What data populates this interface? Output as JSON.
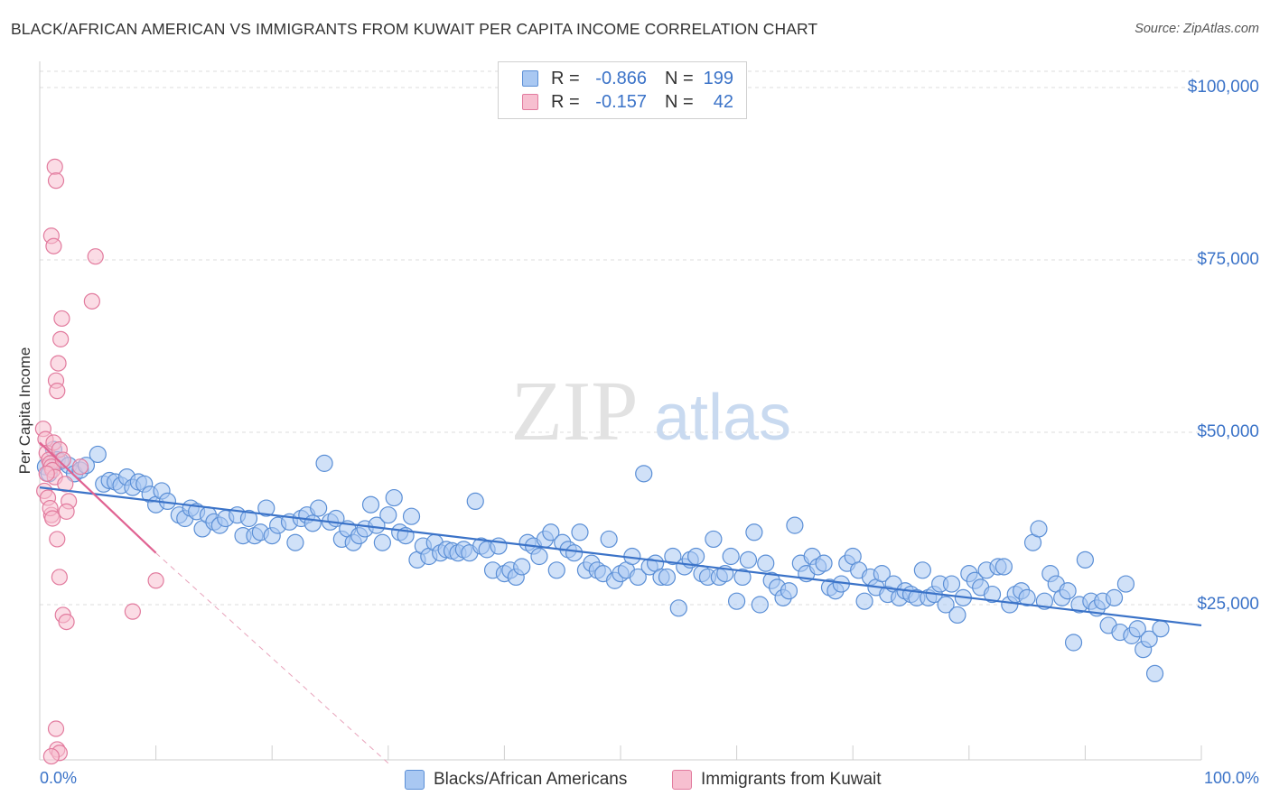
{
  "header": {
    "title": "BLACK/AFRICAN AMERICAN VS IMMIGRANTS FROM KUWAIT PER CAPITA INCOME CORRELATION CHART",
    "source": "Source: ZipAtlas.com"
  },
  "watermark": {
    "zip": "ZIP",
    "atlas": "atlas"
  },
  "legend": {
    "rows": [
      {
        "r_label": "R =",
        "r_value": "-0.866",
        "n_label": "N =",
        "n_value": "199",
        "color": "#a9c8f2",
        "border": "#5b8fd6"
      },
      {
        "r_label": "R =",
        "r_value": "-0.157",
        "n_label": "N =",
        "n_value": "42",
        "color": "#f7bfd0",
        "border": "#e27b9e"
      }
    ]
  },
  "bottom_legend": {
    "series1": "Blacks/African Americans",
    "series2": "Immigrants from Kuwait"
  },
  "chart_data": {
    "type": "scatter",
    "ylabel": "Per Capita Income",
    "x_ticks": [
      "0.0%",
      "100.0%"
    ],
    "y_ticks": [
      "$100,000",
      "$75,000",
      "$50,000",
      "$25,000"
    ],
    "xlim": [
      0,
      100
    ],
    "ylim": [
      0,
      102000
    ],
    "colors": {
      "blue": "#3b73c8",
      "blue_fill": "#a9c8f2",
      "pink": "#e06392",
      "pink_fill": "#f7bfd0"
    },
    "series": [
      {
        "name": "Blacks/African Americans",
        "trend": {
          "x": [
            0,
            100
          ],
          "y": [
            42000,
            22000
          ]
        },
        "points": [
          [
            0.5,
            45000
          ],
          [
            0.8,
            44000
          ],
          [
            1.2,
            47500
          ],
          [
            1.5,
            46000
          ],
          [
            1.8,
            45800
          ],
          [
            2.5,
            45200
          ],
          [
            3.0,
            44000
          ],
          [
            3.5,
            44500
          ],
          [
            4.0,
            45200
          ],
          [
            5.0,
            46800
          ],
          [
            5.5,
            42500
          ],
          [
            6.0,
            43000
          ],
          [
            6.5,
            42800
          ],
          [
            7.0,
            42300
          ],
          [
            7.5,
            43500
          ],
          [
            8.0,
            42000
          ],
          [
            8.5,
            42800
          ],
          [
            9.0,
            42500
          ],
          [
            9.5,
            41000
          ],
          [
            10.0,
            39500
          ],
          [
            10.5,
            41500
          ],
          [
            11.0,
            40000
          ],
          [
            12.0,
            38000
          ],
          [
            12.5,
            37500
          ],
          [
            13.0,
            39000
          ],
          [
            13.5,
            38500
          ],
          [
            14.0,
            36000
          ],
          [
            14.5,
            38000
          ],
          [
            15.0,
            37000
          ],
          [
            15.5,
            36500
          ],
          [
            16.0,
            37500
          ],
          [
            17.0,
            38000
          ],
          [
            17.5,
            35000
          ],
          [
            18.0,
            37500
          ],
          [
            18.5,
            35000
          ],
          [
            19.0,
            35500
          ],
          [
            19.5,
            39000
          ],
          [
            20.0,
            35000
          ],
          [
            20.5,
            36500
          ],
          [
            21.5,
            37000
          ],
          [
            22.0,
            34000
          ],
          [
            22.5,
            37500
          ],
          [
            23.0,
            38000
          ],
          [
            23.5,
            36800
          ],
          [
            24.0,
            39000
          ],
          [
            24.5,
            45500
          ],
          [
            25.0,
            37000
          ],
          [
            25.5,
            37500
          ],
          [
            26.0,
            34500
          ],
          [
            26.5,
            36000
          ],
          [
            27.0,
            34000
          ],
          [
            27.5,
            35000
          ],
          [
            28.0,
            36000
          ],
          [
            28.5,
            39500
          ],
          [
            29.0,
            36500
          ],
          [
            29.5,
            34000
          ],
          [
            30.0,
            38000
          ],
          [
            30.5,
            40500
          ],
          [
            31.0,
            35500
          ],
          [
            31.5,
            35000
          ],
          [
            32.0,
            37800
          ],
          [
            32.5,
            31500
          ],
          [
            33.0,
            33500
          ],
          [
            33.5,
            32000
          ],
          [
            34.0,
            34000
          ],
          [
            34.5,
            32500
          ],
          [
            35.0,
            33000
          ],
          [
            35.5,
            32800
          ],
          [
            36.0,
            32500
          ],
          [
            36.5,
            33000
          ],
          [
            37.0,
            32500
          ],
          [
            37.5,
            40000
          ],
          [
            38.0,
            33500
          ],
          [
            38.5,
            33000
          ],
          [
            39.0,
            30000
          ],
          [
            39.5,
            33500
          ],
          [
            40.0,
            29500
          ],
          [
            40.5,
            30000
          ],
          [
            41.0,
            29000
          ],
          [
            41.5,
            30500
          ],
          [
            42.0,
            34000
          ],
          [
            42.5,
            33500
          ],
          [
            43.0,
            32000
          ],
          [
            43.5,
            34500
          ],
          [
            44.0,
            35500
          ],
          [
            44.5,
            30000
          ],
          [
            45.0,
            34000
          ],
          [
            45.5,
            33000
          ],
          [
            46.0,
            32500
          ],
          [
            46.5,
            35500
          ],
          [
            47.0,
            30000
          ],
          [
            47.5,
            31000
          ],
          [
            48.0,
            30000
          ],
          [
            48.5,
            29500
          ],
          [
            49.0,
            34500
          ],
          [
            49.5,
            28500
          ],
          [
            50.0,
            29500
          ],
          [
            50.5,
            30000
          ],
          [
            51.0,
            32000
          ],
          [
            51.5,
            29000
          ],
          [
            52.0,
            44000
          ],
          [
            52.5,
            30500
          ],
          [
            53.0,
            31000
          ],
          [
            53.5,
            29000
          ],
          [
            54.0,
            29000
          ],
          [
            54.5,
            32000
          ],
          [
            55.0,
            24500
          ],
          [
            55.5,
            30500
          ],
          [
            56.0,
            31500
          ],
          [
            56.5,
            32000
          ],
          [
            57.0,
            29500
          ],
          [
            57.5,
            29000
          ],
          [
            58.0,
            34500
          ],
          [
            58.5,
            29000
          ],
          [
            59.0,
            29500
          ],
          [
            59.5,
            32000
          ],
          [
            60.0,
            25500
          ],
          [
            60.5,
            29000
          ],
          [
            61.0,
            31500
          ],
          [
            61.5,
            35500
          ],
          [
            62.0,
            25000
          ],
          [
            62.5,
            31000
          ],
          [
            63.0,
            28500
          ],
          [
            63.5,
            27500
          ],
          [
            64.0,
            26000
          ],
          [
            64.5,
            27000
          ],
          [
            65.0,
            36500
          ],
          [
            65.5,
            31000
          ],
          [
            66.0,
            29500
          ],
          [
            66.5,
            32000
          ],
          [
            67.0,
            30500
          ],
          [
            67.5,
            31000
          ],
          [
            68.0,
            27500
          ],
          [
            68.5,
            27000
          ],
          [
            69.0,
            28000
          ],
          [
            69.5,
            31000
          ],
          [
            70.0,
            32000
          ],
          [
            70.5,
            30000
          ],
          [
            71.0,
            25500
          ],
          [
            71.5,
            29000
          ],
          [
            72.0,
            27500
          ],
          [
            72.5,
            29500
          ],
          [
            73.0,
            26500
          ],
          [
            73.5,
            28000
          ],
          [
            74.0,
            26000
          ],
          [
            74.5,
            27000
          ],
          [
            75.0,
            26500
          ],
          [
            75.5,
            26000
          ],
          [
            76.0,
            30000
          ],
          [
            76.5,
            26000
          ],
          [
            77.0,
            26500
          ],
          [
            77.5,
            28000
          ],
          [
            78.0,
            25000
          ],
          [
            78.5,
            28000
          ],
          [
            79.0,
            23500
          ],
          [
            79.5,
            26000
          ],
          [
            80.0,
            29500
          ],
          [
            80.5,
            28500
          ],
          [
            81.0,
            27500
          ],
          [
            81.5,
            30000
          ],
          [
            82.0,
            26500
          ],
          [
            82.5,
            30500
          ],
          [
            83.0,
            30500
          ],
          [
            83.5,
            25000
          ],
          [
            84.0,
            26500
          ],
          [
            84.5,
            27000
          ],
          [
            85.0,
            26000
          ],
          [
            85.5,
            34000
          ],
          [
            86.0,
            36000
          ],
          [
            86.5,
            25500
          ],
          [
            87.0,
            29500
          ],
          [
            87.5,
            28000
          ],
          [
            88.0,
            26000
          ],
          [
            88.5,
            27000
          ],
          [
            89.0,
            19500
          ],
          [
            89.5,
            25000
          ],
          [
            90.0,
            31500
          ],
          [
            90.5,
            25500
          ],
          [
            91.0,
            24500
          ],
          [
            91.5,
            25500
          ],
          [
            92.0,
            22000
          ],
          [
            92.5,
            26000
          ],
          [
            93.0,
            21000
          ],
          [
            93.5,
            28000
          ],
          [
            94.0,
            20500
          ],
          [
            94.5,
            21500
          ],
          [
            95.0,
            18500
          ],
          [
            95.5,
            20000
          ],
          [
            96.0,
            15000
          ],
          [
            96.5,
            21500
          ]
        ]
      },
      {
        "name": "Immigrants from Kuwait",
        "trend": {
          "x": [
            0,
            10
          ],
          "y": [
            48500,
            32500
          ],
          "dashed_to": [
            30,
            2000
          ]
        },
        "points": [
          [
            0.3,
            50500
          ],
          [
            0.5,
            49000
          ],
          [
            0.6,
            47000
          ],
          [
            0.8,
            46000
          ],
          [
            0.9,
            45500
          ],
          [
            1.0,
            45000
          ],
          [
            1.1,
            44500
          ],
          [
            1.2,
            48500
          ],
          [
            1.3,
            43500
          ],
          [
            0.4,
            41500
          ],
          [
            0.7,
            40500
          ],
          [
            1.0,
            38000
          ],
          [
            1.4,
            57500
          ],
          [
            1.5,
            56000
          ],
          [
            1.6,
            60000
          ],
          [
            1.8,
            63500
          ],
          [
            1.9,
            66500
          ],
          [
            1.0,
            78500
          ],
          [
            1.2,
            77000
          ],
          [
            1.3,
            88500
          ],
          [
            1.4,
            86500
          ],
          [
            1.7,
            47500
          ],
          [
            2.0,
            46000
          ],
          [
            2.2,
            42500
          ],
          [
            2.5,
            40000
          ],
          [
            2.3,
            38500
          ],
          [
            3.5,
            45000
          ],
          [
            4.5,
            69000
          ],
          [
            4.8,
            75500
          ],
          [
            1.5,
            34500
          ],
          [
            1.7,
            29000
          ],
          [
            2.0,
            23500
          ],
          [
            2.3,
            22500
          ],
          [
            8.0,
            24000
          ],
          [
            10.0,
            28500
          ],
          [
            1.4,
            7000
          ],
          [
            1.5,
            4000
          ],
          [
            1.7,
            3500
          ],
          [
            1.0,
            3000
          ],
          [
            0.6,
            44000
          ],
          [
            0.9,
            39000
          ],
          [
            1.1,
            37500
          ]
        ]
      }
    ]
  }
}
